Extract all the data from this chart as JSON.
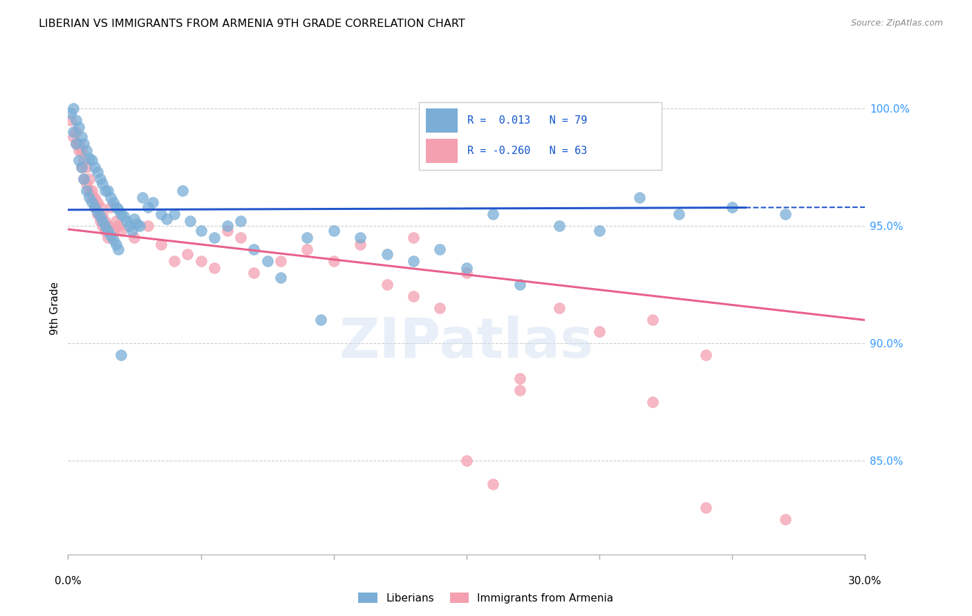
{
  "title": "LIBERIAN VS IMMIGRANTS FROM ARMENIA 9TH GRADE CORRELATION CHART",
  "source": "Source: ZipAtlas.com",
  "ylabel": "9th Grade",
  "y_ticks": [
    85.0,
    90.0,
    95.0,
    100.0
  ],
  "y_tick_labels": [
    "85.0%",
    "90.0%",
    "95.0%",
    "100.0%"
  ],
  "x_lim": [
    0.0,
    0.3
  ],
  "y_lim": [
    81.0,
    102.0
  ],
  "blue_R": "0.013",
  "blue_N": "79",
  "pink_R": "-0.260",
  "pink_N": "63",
  "blue_color": "#7aaed6",
  "pink_color": "#f4a0b0",
  "blue_line_color": "#2255cc",
  "pink_line_color": "#e8608a",
  "legend_label_blue": "Liberians",
  "legend_label_pink": "Immigrants from Armenia",
  "watermark": "ZIPatlas",
  "blue_scatter_x": [
    0.002,
    0.003,
    0.004,
    0.005,
    0.006,
    0.007,
    0.008,
    0.009,
    0.01,
    0.011,
    0.012,
    0.013,
    0.014,
    0.015,
    0.016,
    0.017,
    0.018,
    0.019,
    0.02,
    0.021,
    0.022,
    0.023,
    0.024,
    0.025,
    0.026,
    0.027,
    0.028,
    0.03,
    0.032,
    0.035,
    0.037,
    0.04,
    0.043,
    0.046,
    0.05,
    0.055,
    0.06,
    0.065,
    0.07,
    0.075,
    0.08,
    0.09,
    0.095,
    0.1,
    0.11,
    0.12,
    0.13,
    0.14,
    0.15,
    0.16,
    0.17,
    0.185,
    0.2,
    0.215,
    0.23,
    0.25,
    0.27,
    0.001,
    0.002,
    0.003,
    0.004,
    0.005,
    0.006,
    0.007,
    0.008,
    0.009,
    0.01,
    0.011,
    0.012,
    0.013,
    0.014,
    0.015,
    0.016,
    0.017,
    0.018,
    0.019,
    0.02
  ],
  "blue_scatter_y": [
    100.0,
    99.5,
    99.2,
    98.8,
    98.5,
    98.2,
    97.9,
    97.8,
    97.5,
    97.3,
    97.0,
    96.8,
    96.5,
    96.5,
    96.2,
    96.0,
    95.8,
    95.7,
    95.5,
    95.4,
    95.2,
    95.0,
    94.8,
    95.3,
    95.1,
    95.0,
    96.2,
    95.8,
    96.0,
    95.5,
    95.3,
    95.5,
    96.5,
    95.2,
    94.8,
    94.5,
    95.0,
    95.2,
    94.0,
    93.5,
    92.8,
    94.5,
    91.0,
    94.8,
    94.5,
    93.8,
    93.5,
    94.0,
    93.2,
    95.5,
    92.5,
    95.0,
    94.8,
    96.2,
    95.5,
    95.8,
    95.5,
    99.8,
    99.0,
    98.5,
    97.8,
    97.5,
    97.0,
    96.5,
    96.2,
    96.0,
    95.8,
    95.6,
    95.4,
    95.2,
    95.0,
    94.8,
    94.6,
    94.4,
    94.2,
    94.0,
    89.5
  ],
  "pink_scatter_x": [
    0.001,
    0.002,
    0.003,
    0.004,
    0.005,
    0.006,
    0.007,
    0.008,
    0.009,
    0.01,
    0.011,
    0.012,
    0.013,
    0.014,
    0.015,
    0.016,
    0.017,
    0.018,
    0.019,
    0.02,
    0.025,
    0.03,
    0.035,
    0.04,
    0.045,
    0.05,
    0.055,
    0.06,
    0.065,
    0.07,
    0.08,
    0.09,
    0.1,
    0.11,
    0.12,
    0.13,
    0.14,
    0.15,
    0.16,
    0.17,
    0.185,
    0.2,
    0.22,
    0.24,
    0.13,
    0.15,
    0.17,
    0.003,
    0.004,
    0.005,
    0.006,
    0.007,
    0.008,
    0.009,
    0.01,
    0.011,
    0.012,
    0.013,
    0.014,
    0.015,
    0.22,
    0.24,
    0.27
  ],
  "pink_scatter_y": [
    99.5,
    98.8,
    98.5,
    98.2,
    97.5,
    97.0,
    96.8,
    96.5,
    96.2,
    95.8,
    95.5,
    95.2,
    95.0,
    94.8,
    94.5,
    95.8,
    94.8,
    95.2,
    95.0,
    94.8,
    94.5,
    95.0,
    94.2,
    93.5,
    93.8,
    93.5,
    93.2,
    94.8,
    94.5,
    93.0,
    93.5,
    94.0,
    93.5,
    94.2,
    92.5,
    92.0,
    91.5,
    85.0,
    84.0,
    88.0,
    91.5,
    90.5,
    91.0,
    89.5,
    94.5,
    93.0,
    88.5,
    99.0,
    98.5,
    98.2,
    97.8,
    97.5,
    97.0,
    96.5,
    96.2,
    96.0,
    95.8,
    95.5,
    95.2,
    95.0,
    87.5,
    83.0,
    82.5
  ]
}
